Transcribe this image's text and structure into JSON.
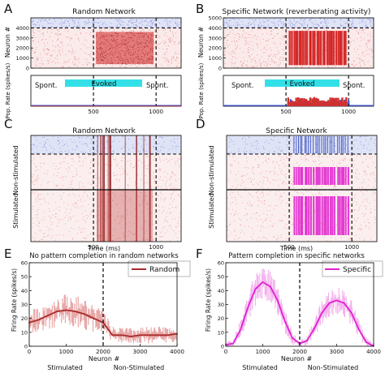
{
  "figure": {
    "panel_letters": [
      "A",
      "B",
      "C",
      "D",
      "E",
      "F"
    ]
  },
  "chart_data": [
    {
      "panel": "A",
      "type": "scatter",
      "title": "Random Network",
      "ylabel": "Neuron #",
      "xlim": [
        0,
        1200
      ],
      "ylim": [
        0,
        5000
      ],
      "yticks": [
        0,
        1000,
        2000,
        3000,
        4000
      ],
      "xticks": [
        500,
        1000
      ],
      "xticklabels": [
        "500",
        "1000"
      ],
      "threshold_neuron": 4000,
      "stim_window_ms": [
        500,
        1000
      ],
      "series": [
        {
          "population": "excitatory",
          "neurons": [
            0,
            4000
          ],
          "color": "#d03030"
        },
        {
          "population": "inhibitory",
          "neurons": [
            4000,
            5000
          ],
          "color": "#3a4fc0"
        }
      ]
    },
    {
      "panel": "A",
      "type": "line",
      "ylabel": "Pop. Rate (spikes/s)",
      "xlim": [
        0,
        1200
      ],
      "ylim": [
        0,
        100
      ],
      "xticks": [
        500,
        1000
      ],
      "xticklabels": [
        "500",
        "1000"
      ],
      "annotations": [
        "Spont.",
        "Evoked",
        "Spont."
      ],
      "evoked_window_ms": [
        500,
        1000
      ],
      "rate_level": 2
    },
    {
      "panel": "B",
      "type": "scatter",
      "title": "Specific Network (reverberating activity)",
      "ylabel": "Neuron #",
      "xlim": [
        0,
        1200
      ],
      "ylim": [
        0,
        5000
      ],
      "yticks": [
        0,
        1000,
        2000,
        3000,
        4000,
        5000
      ],
      "xticks": [
        500,
        1000
      ],
      "xticklabels": [
        "500",
        "1000"
      ],
      "threshold_neuron": 4000,
      "stim_window_ms": [
        500,
        1000
      ]
    },
    {
      "panel": "B",
      "type": "bar",
      "ylabel": "Pop. Rate (spikes/s)",
      "xlim": [
        0,
        1200
      ],
      "ylim": [
        0,
        100
      ],
      "xticks": [
        500,
        1000
      ],
      "xticklabels": [
        "500",
        "1000"
      ],
      "annotations": [
        "Spont.",
        "Evoked",
        "Spont."
      ],
      "evoked_window_ms": [
        500,
        1000
      ],
      "rate_peak": 30
    },
    {
      "panel": "C",
      "type": "scatter",
      "title": "Random Network",
      "ylabel_upper": "Non-stimulated",
      "ylabel_lower": "Stimulated",
      "xlabel": "Time (ms)",
      "xlim": [
        0,
        1200
      ],
      "xticks": [
        500,
        1000
      ],
      "xticklabels": [
        "500",
        "1000"
      ],
      "stim_window_ms": [
        500,
        1000
      ]
    },
    {
      "panel": "D",
      "type": "scatter",
      "title": "Specific Network",
      "ylabel_upper": "Non-stimulated",
      "ylabel_lower": "Stimulated",
      "xlabel": "Time (ms)",
      "xlim": [
        0,
        1200
      ],
      "xticks": [
        500,
        1000
      ],
      "xticklabels": [
        "500",
        "1000"
      ],
      "stim_window_ms": [
        500,
        1000
      ],
      "colors": {
        "excitatory": "#d03030",
        "inhibitory": "#3a4fc0",
        "pattern": "#e020d0"
      }
    },
    {
      "panel": "E",
      "type": "line",
      "title": "No pattern completion in random networks",
      "xlabel": "Neuron #",
      "ylabel": "Firing Rate (spikes/s)",
      "xlim": [
        0,
        4000
      ],
      "ylim": [
        0,
        60
      ],
      "xticks": [
        0,
        1000,
        2000,
        3000,
        4000
      ],
      "yticks": [
        0,
        10,
        20,
        30,
        40,
        50,
        60
      ],
      "group_labels": [
        "Stimulated",
        "Non-Stimulated"
      ],
      "divider_x": 2000,
      "series": [
        {
          "name": "Random",
          "color": "#a82a2a",
          "band_color": "#e8a8a8",
          "x": [
            0,
            250,
            500,
            750,
            1000,
            1250,
            1500,
            1750,
            2000,
            2250,
            2500,
            2750,
            3000,
            3250,
            3500,
            3750,
            4000
          ],
          "values": [
            17,
            19,
            22,
            25,
            26,
            25,
            23,
            20,
            17,
            8,
            8,
            7,
            8,
            8,
            8,
            8,
            9
          ],
          "band": [
            9,
            9,
            10,
            11,
            12,
            12,
            11,
            10,
            9,
            6,
            6,
            6,
            6,
            6,
            6,
            6,
            6
          ]
        }
      ]
    },
    {
      "panel": "F",
      "type": "line",
      "title": "Pattern completion in specific networks",
      "xlabel": "Neuron #",
      "ylabel": "Firing Rate (spikes/s)",
      "xlim": [
        0,
        4000
      ],
      "ylim": [
        0,
        60
      ],
      "xticks": [
        0,
        1000,
        2000,
        3000,
        4000
      ],
      "yticks": [
        0,
        10,
        20,
        30,
        40,
        50,
        60
      ],
      "group_labels": [
        "Stimulated",
        "Non-Stimulated"
      ],
      "divider_x": 2000,
      "series": [
        {
          "name": "Specific",
          "color": "#e020d0",
          "band_color": "#f4b4ee",
          "x": [
            0,
            200,
            400,
            600,
            800,
            1000,
            1200,
            1400,
            1600,
            1800,
            2000,
            2200,
            2400,
            2600,
            2800,
            3000,
            3200,
            3400,
            3600,
            3800,
            4000
          ],
          "values": [
            1,
            2,
            12,
            28,
            41,
            46,
            43,
            33,
            18,
            6,
            2,
            4,
            13,
            24,
            31,
            33,
            31,
            24,
            12,
            3,
            0
          ],
          "band": [
            2,
            3,
            7,
            10,
            12,
            13,
            12,
            10,
            8,
            5,
            2,
            4,
            7,
            9,
            10,
            10,
            10,
            9,
            7,
            4,
            2
          ]
        }
      ]
    }
  ]
}
